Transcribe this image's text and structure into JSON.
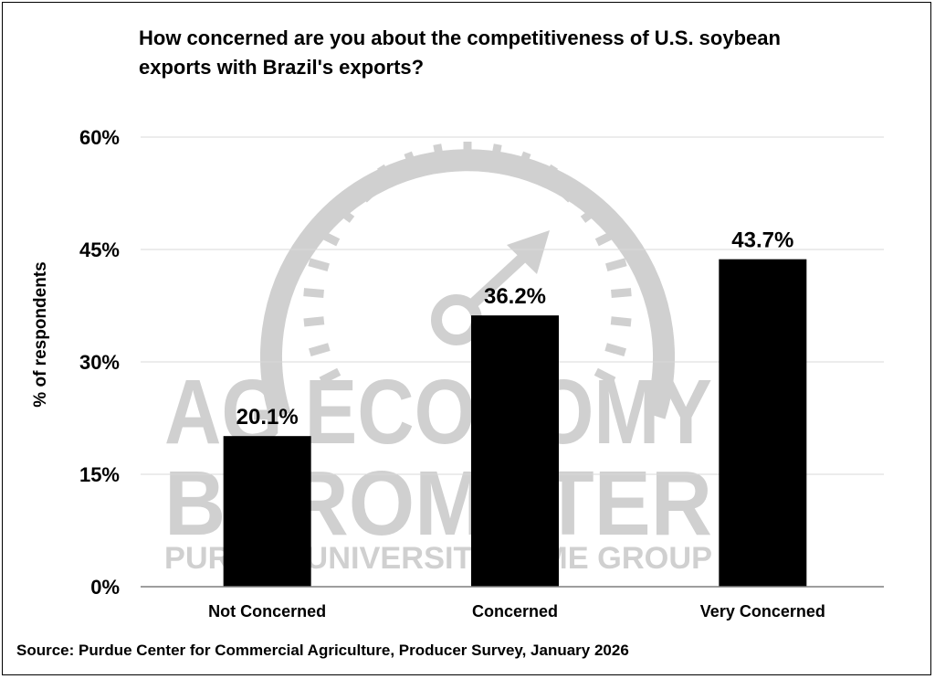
{
  "chart_data": {
    "type": "bar",
    "title": "How concerned are you about the competitiveness of U.S. soybean exports with Brazil's exports?",
    "ylabel": "% of respondents",
    "xlabel": "",
    "categories": [
      "Not Concerned",
      "Concerned",
      "Very Concerned"
    ],
    "values": [
      20.1,
      36.2,
      43.7
    ],
    "data_labels": [
      "20.1%",
      "36.2%",
      "43.7%"
    ],
    "y_ticks": [
      0,
      15,
      30,
      45,
      60
    ],
    "y_tick_labels": [
      "0%",
      "15%",
      "30%",
      "45%",
      "60%"
    ],
    "ylim": [
      0,
      60
    ],
    "grid": true,
    "bar_color": "#000000",
    "gridline_color": "#d9d9d9"
  },
  "source": "Source: Purdue Center for Commercial Agriculture, Producer Survey, January 2026",
  "watermark": {
    "line1": "AG ECONOMY",
    "line2": "BAROMETER",
    "line3": "PURDUE UNIVERSITY | CME GROUP",
    "icon": "gauge-icon"
  }
}
